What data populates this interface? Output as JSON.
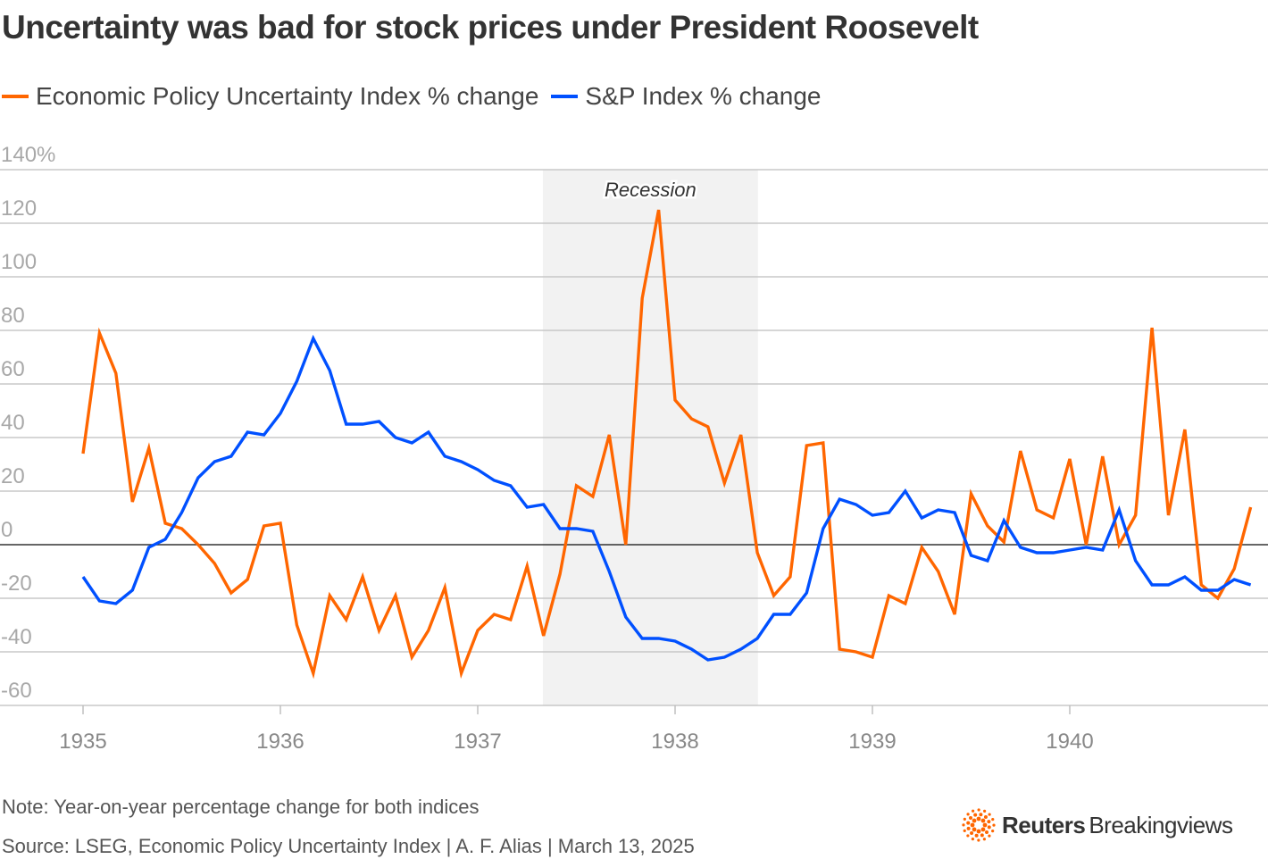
{
  "title": "Uncertainty was bad for stock prices under President Roosevelt",
  "colors": {
    "epu": "#ff6600",
    "sp": "#0050ff",
    "recession": "#f2f2f2",
    "grid": "#c8c8c8",
    "zero": "#333333"
  },
  "note": "Note: Year-on-year percentage change for both indices",
  "source": "Source: LSEG, Economic Policy Uncertainty Index | A. F. Alias | March 13, 2025",
  "logo": {
    "brand": "Reuters",
    "product": "Breakingviews"
  },
  "chart_data": {
    "type": "line",
    "title": "Uncertainty was bad for stock prices under President Roosevelt",
    "xlabel": "",
    "ylabel": "",
    "ylim": [
      -60,
      140
    ],
    "xlim": [
      1935,
      1941
    ],
    "grid": true,
    "legend_position": "top-left",
    "x_start": "1935-01",
    "x_frequency": "monthly",
    "yticks": [
      -60,
      -40,
      -20,
      0,
      20,
      40,
      60,
      80,
      100,
      120,
      140
    ],
    "ytick_labels": [
      "-60",
      "-40",
      "-20",
      "0",
      "20",
      "40",
      "60",
      "80",
      "100",
      "120",
      "140%"
    ],
    "xticks": [
      1935,
      1936,
      1937,
      1938,
      1939,
      1940
    ],
    "xtick_labels": [
      "1935",
      "1936",
      "1937",
      "1938",
      "1939",
      "1940"
    ],
    "annotations": [
      {
        "label": "Recession",
        "start": 1937.33,
        "end": 1938.42
      }
    ],
    "series": [
      {
        "name": "Economic Policy Uncertainty Index % change",
        "color_key": "epu",
        "values": [
          34,
          79,
          64,
          16,
          36,
          8,
          6,
          0,
          -7,
          -18,
          -13,
          7,
          8,
          -30,
          -48,
          -19,
          -28,
          -12,
          -32,
          -19,
          -42,
          -32,
          -16,
          -48,
          -32,
          -26,
          -28,
          -8,
          -34,
          -11,
          22,
          18,
          41,
          0,
          92,
          125,
          54,
          47,
          44,
          23,
          41,
          -3,
          -19,
          -12,
          37,
          38,
          -39,
          -40,
          -42,
          -19,
          -22,
          -1,
          -10,
          -26,
          19,
          7,
          1,
          35,
          13,
          10,
          32,
          0,
          33,
          0,
          11,
          81,
          11,
          43,
          -15,
          -20,
          -9,
          14
        ]
      },
      {
        "name": "S&P Index % change",
        "color_key": "sp",
        "values": [
          -12,
          -21,
          -22,
          -17,
          -1,
          2,
          12,
          25,
          31,
          33,
          42,
          41,
          49,
          61,
          77,
          65,
          45,
          45,
          46,
          40,
          38,
          42,
          33,
          31,
          28,
          24,
          22,
          14,
          15,
          6,
          6,
          5,
          -10,
          -27,
          -35,
          -35,
          -36,
          -39,
          -43,
          -42,
          -39,
          -35,
          -26,
          -26,
          -18,
          6,
          17,
          15,
          11,
          12,
          20,
          10,
          13,
          12,
          -4,
          -6,
          9,
          -1,
          -3,
          -3,
          -2,
          -1,
          -2,
          13,
          -6,
          -15,
          -15,
          -12,
          -17,
          -17,
          -13,
          -15
        ]
      }
    ]
  }
}
